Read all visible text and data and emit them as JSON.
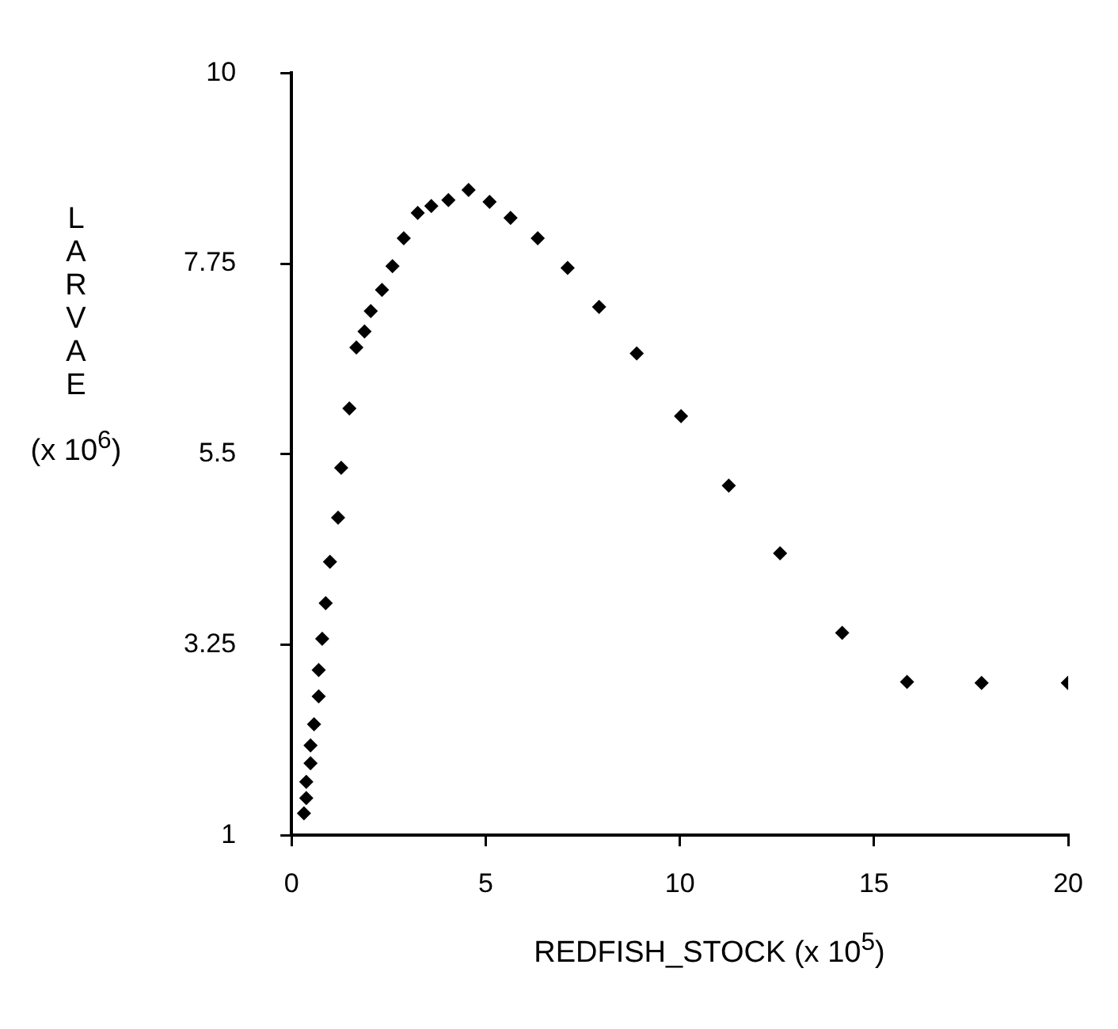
{
  "chart_data": {
    "type": "scatter",
    "xlabel": "REDFISH_STOCK  (x 10$^{5}$)",
    "ylabel": "LARVAE (x 10$^{6}$)",
    "x": [
      0.32,
      0.38,
      0.38,
      0.49,
      0.49,
      0.58,
      0.7,
      0.7,
      0.79,
      0.88,
      0.99,
      1.2,
      1.28,
      1.49,
      1.67,
      1.88,
      2.04,
      2.33,
      2.6,
      2.89,
      3.25,
      3.6,
      4.04,
      4.56,
      5.1,
      5.64,
      6.34,
      7.11,
      7.92,
      8.89,
      10.03,
      11.26,
      12.58,
      14.18,
      15.85,
      17.77,
      19.99
    ],
    "series": [
      {
        "color": "#000000",
        "values": [
          1.26,
          1.44,
          1.63,
          1.85,
          2.06,
          2.31,
          2.64,
          2.95,
          3.32,
          3.74,
          4.23,
          4.75,
          5.34,
          6.04,
          6.76,
          6.95,
          7.19,
          7.44,
          7.72,
          8.05,
          8.35,
          8.43,
          8.5,
          8.62,
          8.48,
          8.29,
          8.05,
          7.7,
          7.24,
          6.69,
          5.95,
          5.13,
          4.33,
          3.39,
          2.81,
          2.8,
          2.8
        ]
      }
    ],
    "xlim": [
      0,
      20
    ],
    "xticks": [
      0,
      5,
      10,
      15,
      20
    ],
    "ylim": [
      1,
      10
    ],
    "yticks": [
      1,
      3.25,
      5.5,
      7.75,
      10
    ],
    "grid": false,
    "legend": false,
    "marker": "diamond"
  }
}
